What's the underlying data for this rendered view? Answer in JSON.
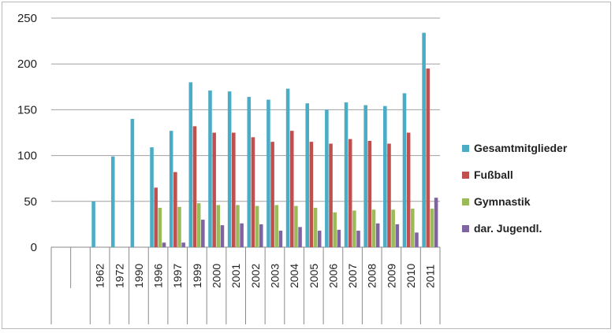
{
  "chart_data": {
    "type": "bar",
    "categories": [
      "",
      "",
      "1962",
      "1972",
      "1990",
      "1996",
      "1997",
      "1999",
      "2000",
      "2001",
      "2002",
      "2003",
      "2004",
      "2005",
      "2006",
      "2007",
      "2008",
      "2009",
      "2010",
      "2011"
    ],
    "series": [
      {
        "name": "Gesamtmitglieder",
        "color": "#4bacc6",
        "values": [
          null,
          null,
          50,
          99,
          140,
          109,
          127,
          180,
          171,
          170,
          164,
          161,
          173,
          157,
          150,
          158,
          155,
          154,
          168,
          234
        ]
      },
      {
        "name": "Fußball",
        "color": "#c0504d",
        "values": [
          null,
          null,
          null,
          null,
          null,
          65,
          82,
          132,
          125,
          125,
          120,
          115,
          127,
          115,
          113,
          118,
          116,
          113,
          125,
          195
        ]
      },
      {
        "name": "Gymnastik",
        "color": "#9bbb59",
        "values": [
          null,
          null,
          null,
          null,
          null,
          43,
          44,
          48,
          46,
          46,
          45,
          46,
          45,
          43,
          38,
          40,
          41,
          41,
          42,
          42
        ]
      },
      {
        "name": "dar. Jugendl.",
        "color": "#8064a2",
        "values": [
          null,
          null,
          null,
          null,
          null,
          5,
          5,
          30,
          24,
          26,
          25,
          18,
          22,
          18,
          19,
          18,
          26,
          25,
          16,
          54
        ]
      }
    ],
    "yticks": [
      0,
      50,
      100,
      150,
      200,
      250
    ],
    "ylim": [
      0,
      250
    ],
    "legend_position": "right",
    "grid": true
  }
}
